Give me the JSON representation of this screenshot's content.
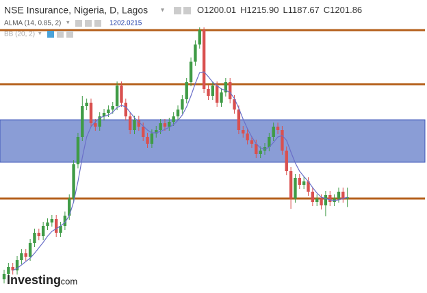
{
  "chart_data": {
    "type": "candlestick",
    "title": "NSE Insurance, Nigeria, D, Lagos",
    "ohlc": [
      {
        "label": "O",
        "value": "1200.01"
      },
      {
        "label": "H",
        "value": "1215.90"
      },
      {
        "label": "L",
        "value": "1187.67"
      },
      {
        "label": "C",
        "value": "1201.86"
      }
    ],
    "alma": {
      "name": "ALMA (14, 0.85, 2)",
      "last": "1202.0215",
      "color": "#6a6fc8",
      "values": [
        null,
        null,
        1095,
        1098,
        1103,
        1108,
        1113,
        1120,
        1128,
        1136,
        1145,
        1152,
        1156,
        1160,
        1165,
        1175,
        1195,
        1225,
        1260,
        1290,
        1305,
        1312,
        1318,
        1320,
        1322,
        1326,
        1333,
        1336,
        1334,
        1326,
        1318,
        1312,
        1306,
        1300,
        1296,
        1296,
        1298,
        1301,
        1304,
        1308,
        1314,
        1322,
        1334,
        1350,
        1368,
        1384,
        1385,
        1378,
        1370,
        1365,
        1360,
        1358,
        1355,
        1346,
        1332,
        1316,
        1302,
        1290,
        1280,
        1274,
        1272,
        1275,
        1282,
        1290,
        1292,
        1285,
        1268,
        1252,
        1240,
        1232,
        1225,
        1216,
        1208,
        1202,
        1200,
        1198,
        1197,
        1198,
        1200,
        1202
      ]
    },
    "bb": {
      "name": "BB (20, 2)"
    },
    "brand": {
      "name": "Investing",
      "suffix": ".com"
    },
    "ylim": [
      1080,
      1452
    ],
    "up_color": "#3f9b46",
    "down_color": "#d9504f",
    "levels": [
      1446,
      1367,
      1200
    ],
    "level_color": "#b5601c",
    "zone": [
      1253,
      1315
    ],
    "zone_color": "#8a9dd6",
    "candles": {
      "open": [
        1082,
        1090,
        1100,
        1095,
        1110,
        1120,
        1115,
        1135,
        1150,
        1145,
        1160,
        1165,
        1170,
        1150,
        1160,
        1175,
        1200,
        1250,
        1290,
        1335,
        1340,
        1310,
        1305,
        1320,
        1325,
        1330,
        1335,
        1365,
        1340,
        1320,
        1300,
        1315,
        1305,
        1290,
        1280,
        1295,
        1300,
        1310,
        1305,
        1312,
        1320,
        1330,
        1345,
        1370,
        1400,
        1425,
        1446,
        1360,
        1350,
        1365,
        1340,
        1355,
        1370,
        1345,
        1330,
        1300,
        1295,
        1285,
        1280,
        1265,
        1270,
        1275,
        1290,
        1305,
        1300,
        1270,
        1240,
        1200,
        1230,
        1220,
        1225,
        1210,
        1195,
        1200,
        1190,
        1205,
        1195,
        1200,
        1210,
        1200.01
      ],
      "high": [
        1096,
        1106,
        1106,
        1116,
        1126,
        1126,
        1141,
        1156,
        1156,
        1166,
        1171,
        1176,
        1176,
        1166,
        1181,
        1206,
        1256,
        1296,
        1350,
        1346,
        1346,
        1316,
        1326,
        1331,
        1336,
        1341,
        1371,
        1371,
        1346,
        1326,
        1321,
        1321,
        1311,
        1296,
        1301,
        1306,
        1316,
        1316,
        1318,
        1326,
        1336,
        1351,
        1376,
        1406,
        1431,
        1450,
        1450,
        1366,
        1371,
        1371,
        1361,
        1376,
        1376,
        1351,
        1336,
        1306,
        1301,
        1291,
        1286,
        1276,
        1281,
        1296,
        1311,
        1311,
        1306,
        1276,
        1246,
        1236,
        1236,
        1231,
        1231,
        1216,
        1206,
        1206,
        1211,
        1211,
        1206,
        1216,
        1216,
        1215.9
      ],
      "low": [
        1076,
        1084,
        1089,
        1089,
        1104,
        1109,
        1109,
        1129,
        1139,
        1139,
        1154,
        1159,
        1144,
        1144,
        1154,
        1169,
        1194,
        1244,
        1284,
        1329,
        1304,
        1299,
        1299,
        1314,
        1319,
        1324,
        1329,
        1334,
        1314,
        1294,
        1294,
        1299,
        1284,
        1274,
        1274,
        1289,
        1294,
        1299,
        1299,
        1306,
        1314,
        1324,
        1339,
        1364,
        1394,
        1419,
        1354,
        1344,
        1344,
        1334,
        1334,
        1349,
        1339,
        1324,
        1294,
        1289,
        1279,
        1274,
        1259,
        1259,
        1264,
        1269,
        1284,
        1294,
        1264,
        1234,
        1185,
        1194,
        1214,
        1214,
        1204,
        1189,
        1189,
        1184,
        1174,
        1189,
        1189,
        1194,
        1194,
        1187.67
      ],
      "close": [
        1090,
        1100,
        1095,
        1110,
        1120,
        1115,
        1135,
        1150,
        1145,
        1160,
        1165,
        1170,
        1150,
        1160,
        1175,
        1200,
        1250,
        1290,
        1335,
        1340,
        1310,
        1305,
        1320,
        1325,
        1330,
        1335,
        1365,
        1340,
        1320,
        1300,
        1315,
        1305,
        1290,
        1280,
        1295,
        1300,
        1310,
        1305,
        1312,
        1320,
        1330,
        1345,
        1370,
        1400,
        1425,
        1446,
        1360,
        1350,
        1365,
        1340,
        1355,
        1370,
        1345,
        1330,
        1300,
        1295,
        1285,
        1280,
        1265,
        1270,
        1275,
        1290,
        1305,
        1300,
        1270,
        1240,
        1200,
        1230,
        1220,
        1225,
        1210,
        1195,
        1200,
        1190,
        1205,
        1195,
        1200,
        1210,
        1200,
        1201.86
      ]
    }
  }
}
